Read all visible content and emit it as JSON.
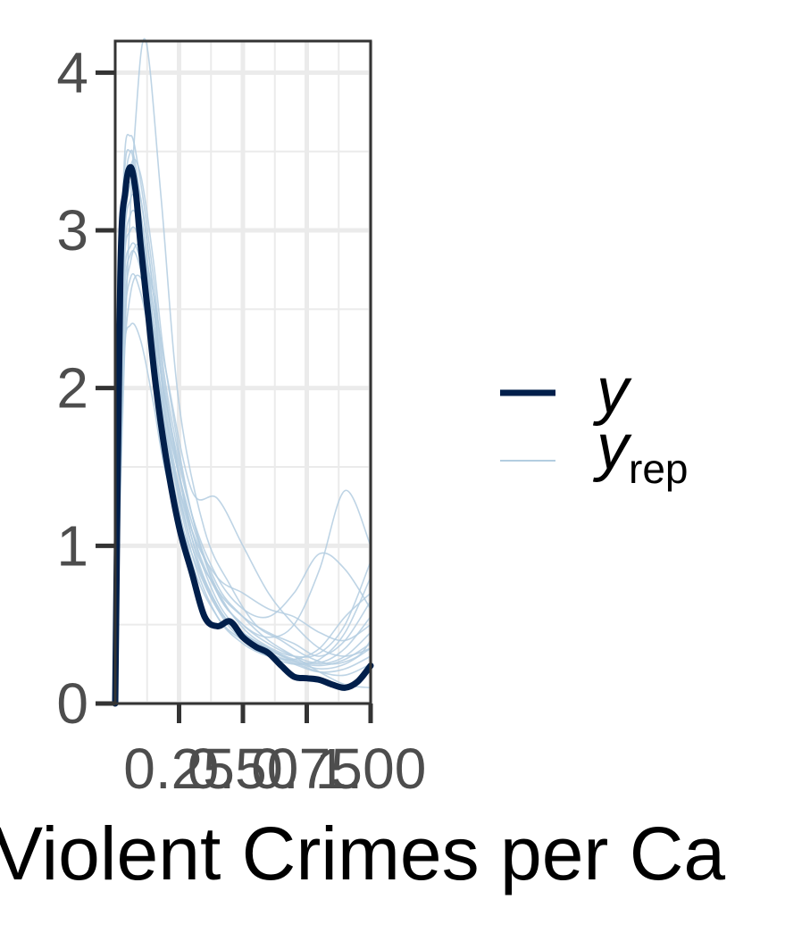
{
  "chart_data": {
    "type": "line",
    "title": "",
    "xlabel": "Violent Crimes per Ca",
    "ylabel": "",
    "xlim": [
      0,
      1
    ],
    "ylim": [
      0,
      4.2
    ],
    "x_ticks": [
      0.25,
      0.5,
      0.75,
      1.0
    ],
    "x_tick_labels": [
      "0.25",
      "0.50",
      "0.75",
      "1.00"
    ],
    "y_ticks": [
      0,
      1,
      2,
      3,
      4
    ],
    "y_tick_labels": [
      "0",
      "1",
      "2",
      "3",
      "4"
    ],
    "grid": true,
    "legend_position": "right",
    "legend": [
      {
        "key": "y",
        "label": "y",
        "subscript": "",
        "color": "#011f4b",
        "weight": "thick"
      },
      {
        "key": "yrep",
        "label": "y",
        "subscript": "rep",
        "color": "#b3cde0",
        "weight": "thin"
      }
    ],
    "series": [
      {
        "name": "y",
        "color": "#011f4b",
        "x": [
          0.0,
          0.02,
          0.04,
          0.06,
          0.08,
          0.1,
          0.13,
          0.16,
          0.2,
          0.25,
          0.3,
          0.35,
          0.4,
          0.45,
          0.5,
          0.55,
          0.6,
          0.65,
          0.7,
          0.75,
          0.8,
          0.85,
          0.9,
          0.95,
          1.0
        ],
        "values": [
          0.0,
          2.7,
          3.25,
          3.4,
          3.25,
          2.9,
          2.45,
          2.0,
          1.55,
          1.12,
          0.83,
          0.55,
          0.49,
          0.52,
          0.42,
          0.36,
          0.32,
          0.24,
          0.17,
          0.16,
          0.15,
          0.12,
          0.1,
          0.14,
          0.24
        ]
      }
    ],
    "replicates": [
      {
        "name": "yrep-1",
        "x": [
          0.0,
          0.03,
          0.06,
          0.1,
          0.15,
          0.2,
          0.3,
          0.4,
          0.5,
          0.6,
          0.7,
          0.8,
          0.9,
          1.0
        ],
        "values": [
          0.3,
          2.1,
          2.4,
          2.3,
          1.9,
          1.45,
          0.95,
          0.6,
          0.45,
          0.35,
          0.28,
          0.25,
          0.3,
          0.45
        ]
      },
      {
        "name": "yrep-2",
        "x": [
          0.0,
          0.03,
          0.06,
          0.1,
          0.15,
          0.2,
          0.3,
          0.4,
          0.5,
          0.6,
          0.7,
          0.8,
          0.9,
          1.0
        ],
        "values": [
          0.2,
          2.6,
          3.1,
          3.0,
          2.5,
          1.9,
          1.1,
          0.65,
          0.45,
          0.35,
          0.27,
          0.22,
          0.25,
          0.35
        ]
      },
      {
        "name": "yrep-3",
        "x": [
          0.0,
          0.04,
          0.08,
          0.12,
          0.18,
          0.25,
          0.35,
          0.45,
          0.55,
          0.65,
          0.75,
          0.85,
          0.95,
          1.0
        ],
        "values": [
          0.1,
          2.4,
          3.7,
          4.2,
          3.2,
          1.9,
          1.1,
          0.75,
          0.5,
          0.4,
          0.3,
          0.25,
          0.3,
          0.4
        ]
      },
      {
        "name": "yrep-4",
        "x": [
          0.0,
          0.03,
          0.06,
          0.1,
          0.15,
          0.2,
          0.3,
          0.4,
          0.5,
          0.6,
          0.7,
          0.8,
          0.9,
          1.0
        ],
        "values": [
          0.4,
          3.2,
          3.6,
          3.3,
          2.7,
          2.0,
          1.2,
          0.7,
          0.5,
          0.38,
          0.3,
          0.26,
          0.35,
          0.55
        ]
      },
      {
        "name": "yrep-5",
        "x": [
          0.0,
          0.03,
          0.06,
          0.1,
          0.15,
          0.2,
          0.3,
          0.4,
          0.5,
          0.6,
          0.7,
          0.8,
          0.9,
          1.0
        ],
        "values": [
          0.3,
          2.9,
          3.5,
          3.2,
          2.6,
          1.8,
          1.05,
          0.72,
          0.55,
          0.45,
          0.38,
          0.3,
          0.4,
          0.65
        ]
      },
      {
        "name": "yrep-6",
        "x": [
          0.0,
          0.03,
          0.06,
          0.1,
          0.15,
          0.2,
          0.3,
          0.4,
          0.5,
          0.6,
          0.7,
          0.8,
          0.9,
          1.0
        ],
        "values": [
          0.2,
          2.2,
          2.7,
          2.6,
          2.2,
          1.7,
          1.1,
          0.8,
          0.7,
          0.6,
          0.55,
          0.45,
          0.4,
          0.5
        ]
      },
      {
        "name": "yrep-7",
        "x": [
          0.0,
          0.03,
          0.06,
          0.1,
          0.15,
          0.2,
          0.3,
          0.4,
          0.5,
          0.6,
          0.7,
          0.8,
          0.9,
          1.0
        ],
        "values": [
          0.3,
          2.5,
          2.9,
          2.8,
          2.3,
          1.7,
          1.0,
          0.62,
          0.42,
          0.32,
          0.25,
          0.2,
          0.22,
          0.3
        ]
      },
      {
        "name": "yrep-8",
        "x": [
          0.0,
          0.03,
          0.06,
          0.1,
          0.15,
          0.2,
          0.3,
          0.4,
          0.5,
          0.6,
          0.7,
          0.8,
          0.9,
          1.0
        ],
        "values": [
          0.5,
          3.0,
          3.3,
          3.0,
          2.4,
          1.75,
          1.0,
          0.6,
          0.4,
          0.3,
          0.25,
          0.28,
          0.45,
          0.8
        ]
      },
      {
        "name": "yrep-9",
        "x": [
          0.0,
          0.03,
          0.06,
          0.1,
          0.15,
          0.2,
          0.3,
          0.4,
          0.5,
          0.6,
          0.7,
          0.8,
          0.9,
          1.0
        ],
        "values": [
          0.2,
          2.3,
          2.8,
          2.9,
          2.6,
          2.1,
          1.35,
          1.3,
          1.0,
          0.7,
          0.5,
          0.35,
          0.3,
          0.35
        ]
      },
      {
        "name": "yrep-10",
        "x": [
          0.0,
          0.03,
          0.06,
          0.1,
          0.15,
          0.2,
          0.3,
          0.4,
          0.5,
          0.6,
          0.7,
          0.8,
          0.9,
          1.0
        ],
        "values": [
          0.3,
          2.7,
          3.2,
          3.1,
          2.5,
          1.85,
          1.1,
          0.7,
          0.5,
          0.42,
          0.5,
          0.85,
          1.35,
          1.0
        ]
      },
      {
        "name": "yrep-11",
        "x": [
          0.0,
          0.03,
          0.06,
          0.1,
          0.15,
          0.2,
          0.3,
          0.4,
          0.5,
          0.6,
          0.7,
          0.8,
          0.9,
          1.0
        ],
        "values": [
          0.4,
          2.8,
          3.4,
          3.35,
          2.8,
          2.1,
          1.2,
          0.75,
          0.55,
          0.4,
          0.3,
          0.2,
          0.12,
          0.1
        ]
      },
      {
        "name": "yrep-12",
        "x": [
          0.0,
          0.03,
          0.06,
          0.1,
          0.15,
          0.2,
          0.3,
          0.4,
          0.5,
          0.6,
          0.7,
          0.8,
          0.9,
          1.0
        ],
        "values": [
          0.3,
          2.6,
          3.0,
          2.9,
          2.35,
          1.7,
          0.95,
          0.55,
          0.38,
          0.3,
          0.28,
          0.35,
          0.55,
          0.7
        ]
      },
      {
        "name": "yrep-13",
        "x": [
          0.0,
          0.03,
          0.06,
          0.1,
          0.15,
          0.2,
          0.3,
          0.4,
          0.5,
          0.6,
          0.7,
          0.8,
          0.9,
          1.0
        ],
        "values": [
          0.2,
          2.0,
          2.6,
          2.7,
          2.4,
          1.9,
          1.2,
          0.8,
          0.6,
          0.55,
          0.7,
          0.95,
          0.85,
          0.6
        ]
      },
      {
        "name": "yrep-14",
        "x": [
          0.0,
          0.03,
          0.06,
          0.1,
          0.15,
          0.2,
          0.3,
          0.4,
          0.5,
          0.6,
          0.7,
          0.8,
          0.9,
          1.0
        ],
        "values": [
          0.4,
          3.1,
          3.5,
          3.1,
          2.4,
          1.65,
          0.9,
          0.55,
          0.4,
          0.32,
          0.26,
          0.2,
          0.18,
          0.25
        ]
      },
      {
        "name": "yrep-15",
        "x": [
          0.0,
          0.03,
          0.06,
          0.1,
          0.15,
          0.2,
          0.3,
          0.4,
          0.5,
          0.6,
          0.7,
          0.8,
          0.9,
          1.0
        ],
        "values": [
          0.3,
          2.4,
          2.85,
          2.75,
          2.3,
          1.8,
          1.15,
          0.72,
          0.48,
          0.36,
          0.3,
          0.32,
          0.5,
          0.9
        ]
      },
      {
        "name": "yrep-16",
        "x": [
          0.0,
          0.03,
          0.06,
          0.1,
          0.15,
          0.2,
          0.3,
          0.4,
          0.5,
          0.6,
          0.7,
          0.8,
          0.9,
          1.0
        ],
        "values": [
          0.2,
          2.7,
          3.3,
          3.2,
          2.6,
          1.95,
          1.05,
          0.62,
          0.44,
          0.34,
          0.27,
          0.24,
          0.28,
          0.38
        ]
      }
    ]
  }
}
